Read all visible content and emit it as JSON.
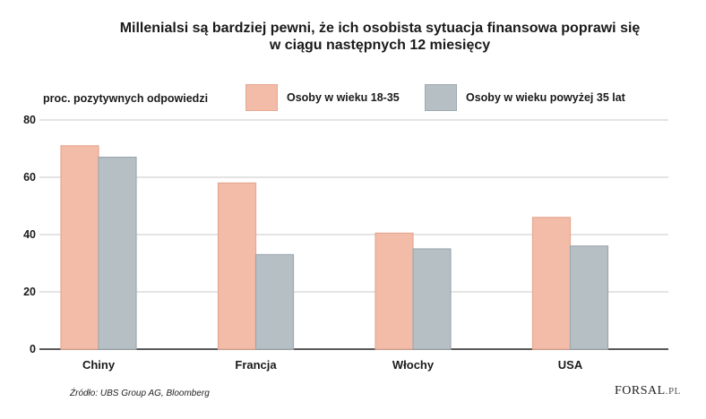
{
  "chart_data": {
    "type": "bar",
    "title_line1": "Millenialsi są bardziej pewni, że ich osobista sytuacja finansowa poprawi się",
    "title_line2": "w ciągu następnych 12 miesięcy",
    "ylabel": "proc. pozytywnych odpowiedzi",
    "categories": [
      "Chiny",
      "Francja",
      "Włochy",
      "USA"
    ],
    "series": [
      {
        "name": "Osoby w wieku 18-35",
        "color": "#f2bca8",
        "edge": "#e6a892",
        "values": [
          71,
          58,
          40.5,
          46
        ]
      },
      {
        "name": "Osoby w wieku powyżej 35 lat",
        "color": "#b5bfc4",
        "edge": "#9eaab0",
        "values": [
          67,
          33,
          35,
          36
        ]
      }
    ],
    "yticks": [
      0,
      20,
      40,
      60,
      80
    ],
    "ylim": [
      0,
      80
    ],
    "grid": true,
    "source": "Źródło: UBS Group AG, Bloomberg"
  },
  "logo": {
    "main": "FORSAL",
    "suffix": ".PL"
  }
}
